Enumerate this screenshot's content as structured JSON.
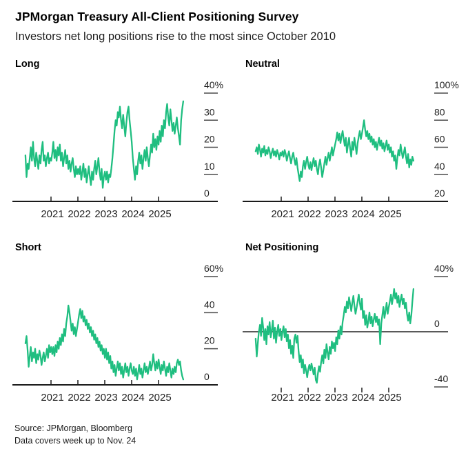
{
  "header": {
    "title": "JPMorgan Treasury All-Client Positioning Survey",
    "subtitle": "Investors net long positions rise to the most since October 2010"
  },
  "footer": {
    "source_line1": "Source: JPMorgan, Bloomberg",
    "source_line2": "Data covers week up to Nov. 24"
  },
  "colors": {
    "line": "#1fbe80",
    "axis": "#1a1a1a",
    "tick_dash": "#4a4a4a",
    "zero_line": "#5a5a5a",
    "label_text": "#1f1f1f"
  },
  "chart_data": [
    {
      "type": "line",
      "title": "Long",
      "x_start": 2020.05,
      "x_end": 2025.92,
      "x_ticks": [
        2021,
        2022,
        2023,
        2024,
        2025
      ],
      "y_ticks": [
        {
          "value": 40,
          "label": "40%"
        },
        {
          "value": 30,
          "label": "30"
        },
        {
          "value": 20,
          "label": "20"
        },
        {
          "value": 10,
          "label": "10"
        },
        {
          "value": 0,
          "label": "0"
        }
      ],
      "zero_line": false,
      "bottom_axis": true,
      "values": [
        17,
        9,
        14,
        12,
        16,
        20,
        15,
        22,
        16,
        13,
        18,
        15,
        12,
        17,
        14,
        19,
        22,
        15,
        17,
        13,
        16,
        18,
        14,
        16,
        15,
        18,
        22,
        16,
        19,
        15,
        20,
        17,
        21,
        15,
        18,
        13,
        16,
        19,
        14,
        17,
        12,
        15,
        11,
        14,
        16,
        12,
        9,
        13,
        10,
        12,
        10,
        13,
        8,
        11,
        14,
        9,
        12,
        7,
        10,
        13,
        9,
        6,
        11,
        8,
        12,
        15,
        10,
        13,
        16,
        11,
        8,
        12,
        5,
        9,
        11,
        8,
        11,
        7,
        10,
        9,
        12,
        16,
        21,
        26,
        30,
        28,
        33,
        31,
        35,
        30,
        27,
        32,
        28,
        24,
        29,
        33,
        35,
        30,
        26,
        22,
        16,
        12,
        8,
        13,
        10,
        15,
        18,
        14,
        17,
        12,
        16,
        19,
        15,
        20,
        16,
        13,
        17,
        21,
        18,
        25,
        20,
        23,
        19,
        24,
        21,
        26,
        22,
        28,
        24,
        30,
        27,
        33,
        36,
        31,
        28,
        34,
        30,
        26,
        29,
        25,
        28,
        31,
        27,
        24,
        21,
        30,
        34,
        37
      ]
    },
    {
      "type": "line",
      "title": "Neutral",
      "x_start": 2020.05,
      "x_end": 2025.92,
      "x_ticks": [
        2021,
        2022,
        2023,
        2024,
        2025
      ],
      "y_ticks": [
        {
          "value": 100,
          "label": "100%"
        },
        {
          "value": 80,
          "label": "80"
        },
        {
          "value": 60,
          "label": "60"
        },
        {
          "value": 40,
          "label": "40"
        },
        {
          "value": 20,
          "label": "20"
        }
      ],
      "zero_line": false,
      "bottom_axis": true,
      "values": [
        57,
        60,
        55,
        62,
        58,
        53,
        59,
        56,
        61,
        54,
        58,
        55,
        60,
        57,
        52,
        56,
        59,
        54,
        57,
        53,
        58,
        55,
        51,
        56,
        54,
        57,
        53,
        58,
        55,
        50,
        54,
        57,
        52,
        48,
        53,
        56,
        51,
        47,
        52,
        45,
        40,
        35,
        42,
        38,
        46,
        50,
        44,
        49,
        53,
        47,
        44,
        49,
        43,
        48,
        52,
        46,
        50,
        44,
        40,
        47,
        51,
        45,
        38,
        43,
        48,
        53,
        47,
        52,
        56,
        50,
        55,
        60,
        54,
        58,
        62,
        66,
        71,
        65,
        70,
        63,
        68,
        72,
        66,
        61,
        67,
        56,
        62,
        67,
        59,
        53,
        64,
        58,
        67,
        61,
        55,
        63,
        68,
        72,
        66,
        70,
        75,
        80,
        73,
        68,
        72,
        66,
        70,
        64,
        68,
        62,
        66,
        60,
        64,
        58,
        63,
        67,
        61,
        65,
        59,
        63,
        57,
        61,
        65,
        58,
        62,
        56,
        60,
        53,
        57,
        50,
        54,
        44,
        52,
        58,
        54,
        62,
        57,
        52,
        56,
        60,
        53,
        48,
        55,
        45,
        51,
        47,
        53,
        50
      ]
    },
    {
      "type": "line",
      "title": "Short",
      "x_start": 2020.05,
      "x_end": 2025.92,
      "x_ticks": [
        2021,
        2022,
        2023,
        2024,
        2025
      ],
      "y_ticks": [
        {
          "value": 60,
          "label": "60%"
        },
        {
          "value": 40,
          "label": "40"
        },
        {
          "value": 20,
          "label": "20"
        },
        {
          "value": 0,
          "label": "0"
        }
      ],
      "zero_line": false,
      "bottom_axis": true,
      "values": [
        23,
        27,
        19,
        10,
        16,
        21,
        13,
        18,
        15,
        20,
        12,
        17,
        14,
        19,
        16,
        11,
        15,
        18,
        13,
        16,
        20,
        15,
        22,
        18,
        21,
        17,
        21,
        16,
        22,
        18,
        24,
        20,
        26,
        22,
        28,
        24,
        31,
        27,
        34,
        38,
        44,
        40,
        35,
        30,
        34,
        28,
        32,
        27,
        31,
        35,
        39,
        42,
        37,
        41,
        35,
        38,
        33,
        36,
        31,
        34,
        29,
        32,
        27,
        30,
        25,
        28,
        23,
        26,
        21,
        24,
        19,
        22,
        17,
        20,
        15,
        20,
        14,
        18,
        12,
        16,
        9,
        13,
        7,
        11,
        5,
        9,
        13,
        8,
        12,
        6,
        10,
        4,
        8,
        12,
        7,
        10,
        5,
        9,
        12,
        8,
        6,
        10,
        5,
        9,
        3,
        7,
        11,
        6,
        9,
        4,
        8,
        12,
        7,
        10,
        6,
        9,
        13,
        8,
        11,
        17,
        12,
        8,
        13,
        9,
        14,
        10,
        6,
        11,
        8,
        13,
        9,
        5,
        10,
        7,
        12,
        8,
        4,
        9,
        6,
        10,
        7,
        12,
        14,
        11,
        13,
        8,
        5,
        3
      ]
    },
    {
      "type": "line",
      "title": "Net Positioning",
      "x_start": 2020.05,
      "x_end": 2025.92,
      "x_ticks": [
        2021,
        2022,
        2023,
        2024,
        2025
      ],
      "y_ticks": [
        {
          "value": 40,
          "label": "40%"
        },
        {
          "value": 0,
          "label": "0"
        },
        {
          "value": -40,
          "label": "-40"
        }
      ],
      "zero_line": true,
      "bottom_axis": false,
      "values": [
        -5,
        -18,
        -8,
        0,
        5,
        -3,
        10,
        3,
        -6,
        2,
        -9,
        4,
        -2,
        7,
        -4,
        1,
        8,
        -5,
        3,
        -8,
        0,
        5,
        -3,
        2,
        -6,
        0,
        4,
        -4,
        2,
        -7,
        -2,
        -12,
        -6,
        -16,
        -10,
        -19,
        -5,
        -2,
        -8,
        -3,
        -14,
        -22,
        -17,
        -26,
        -20,
        -30,
        -24,
        -28,
        -33,
        -27,
        -24,
        -28,
        -23,
        -27,
        -31,
        -26,
        -35,
        -37,
        -30,
        -25,
        -29,
        -22,
        -17,
        -23,
        -13,
        -19,
        -9,
        -15,
        -20,
        -11,
        -16,
        -7,
        -12,
        -8,
        -14,
        -4,
        -9,
        1,
        -5,
        4,
        -2,
        7,
        12,
        18,
        14,
        22,
        17,
        25,
        20,
        15,
        21,
        26,
        19,
        13,
        17,
        22,
        27,
        21,
        16,
        24,
        10,
        15,
        5,
        12,
        3,
        8,
        14,
        6,
        11,
        4,
        9,
        13,
        7,
        11,
        5,
        9,
        -9,
        6,
        12,
        18,
        10,
        15,
        21,
        13,
        18,
        22,
        27,
        20,
        25,
        31,
        24,
        28,
        21,
        26,
        18,
        23,
        27,
        20,
        24,
        17,
        21,
        13,
        8,
        14,
        6,
        12,
        22,
        31
      ]
    }
  ]
}
